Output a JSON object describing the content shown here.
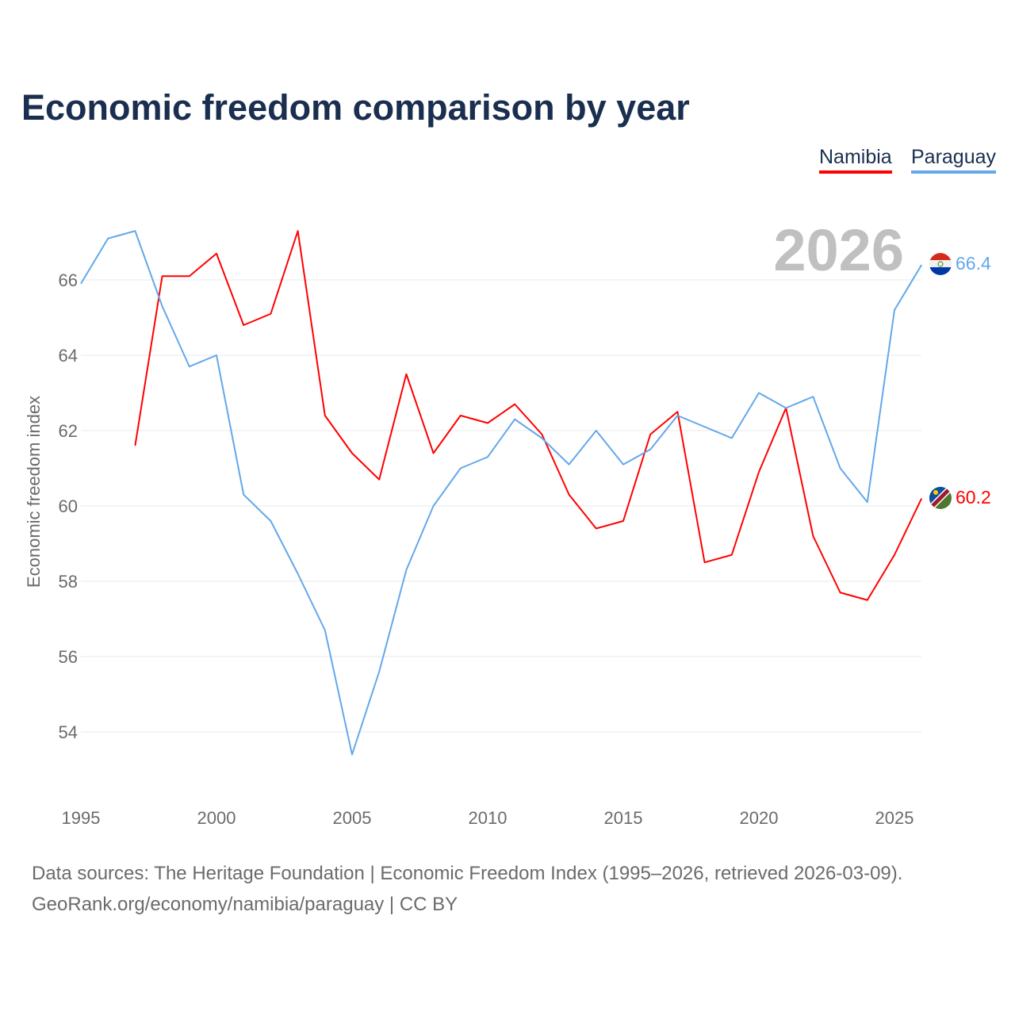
{
  "title": "Economic freedom comparison by year",
  "legend": [
    "Namibia",
    "Paraguay"
  ],
  "year_watermark": "2026",
  "footer": {
    "line1": "Data sources: The Heritage Foundation | Economic Freedom Index (1995–2026, retrieved 2026-03-09).",
    "line2": "GeoRank.org/economy/namibia/paraguay | CC BY"
  },
  "chart_data": {
    "type": "line",
    "title": "Economic freedom comparison by year",
    "xlabel": "",
    "ylabel": "Economic freedom index",
    "xlim": [
      1995,
      2026
    ],
    "ylim": [
      52.5,
      67.5
    ],
    "xticks": [
      1995,
      2000,
      2005,
      2010,
      2015,
      2020,
      2025
    ],
    "yticks": [
      54,
      56,
      58,
      60,
      62,
      64,
      66
    ],
    "grid": true,
    "legend_position": "top-right",
    "series": [
      {
        "name": "Namibia",
        "color": "#ff0000",
        "end_label": "60.2",
        "x": [
          1997,
          1998,
          1999,
          2000,
          2001,
          2002,
          2003,
          2004,
          2005,
          2006,
          2007,
          2008,
          2009,
          2010,
          2011,
          2012,
          2013,
          2014,
          2015,
          2016,
          2017,
          2018,
          2019,
          2020,
          2021,
          2022,
          2023,
          2024,
          2025,
          2026
        ],
        "values": [
          61.6,
          66.1,
          66.1,
          66.7,
          64.8,
          65.1,
          67.3,
          62.4,
          61.4,
          60.7,
          63.5,
          61.4,
          62.4,
          62.2,
          62.7,
          61.9,
          60.3,
          59.4,
          59.6,
          61.9,
          62.5,
          58.5,
          58.7,
          60.9,
          62.6,
          59.2,
          57.7,
          57.5,
          58.7,
          60.2
        ]
      },
      {
        "name": "Paraguay",
        "color": "#63a8ea",
        "end_label": "66.4",
        "x": [
          1995,
          1996,
          1997,
          1998,
          1999,
          2000,
          2001,
          2002,
          2003,
          2004,
          2005,
          2006,
          2007,
          2008,
          2009,
          2010,
          2011,
          2012,
          2013,
          2014,
          2015,
          2016,
          2017,
          2018,
          2019,
          2020,
          2021,
          2022,
          2023,
          2024,
          2025,
          2026
        ],
        "values": [
          65.9,
          67.1,
          67.3,
          65.3,
          63.7,
          64.0,
          60.3,
          59.6,
          58.2,
          56.7,
          53.4,
          55.6,
          58.3,
          60.0,
          61.0,
          61.3,
          62.3,
          61.8,
          61.1,
          62.0,
          61.1,
          61.5,
          62.4,
          62.1,
          61.8,
          63.0,
          62.6,
          62.9,
          61.0,
          60.1,
          65.2,
          66.4
        ]
      }
    ]
  }
}
